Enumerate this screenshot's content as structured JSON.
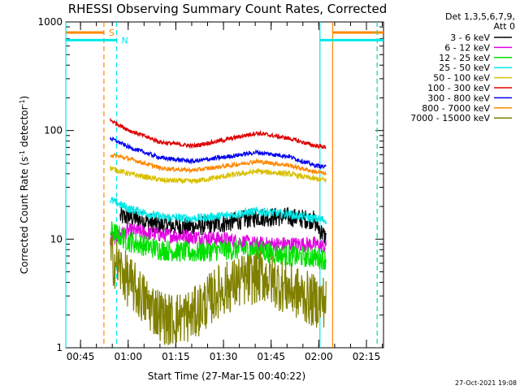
{
  "chart_data": {
    "type": "line",
    "title": "RHESSI Observing Summary Count Rates, Corrected",
    "ylabel_main": "Corrected Count Rate (s",
    "ylabel_sup1": "-1",
    "ylabel_mid": " detector",
    "ylabel_sup2": "-1",
    "ylabel_end": ")",
    "xlabel": "Start Time (27-Mar-15 00:40:22)",
    "yscale": "log",
    "ylim": [
      1,
      1000
    ],
    "xlim_minutes": [
      0,
      100
    ],
    "x_tick_labels": [
      "00:45",
      "01:00",
      "01:15",
      "01:30",
      "01:45",
      "02:00",
      "02:15"
    ],
    "x_tick_minutes": [
      4.63,
      19.63,
      34.63,
      49.63,
      64.63,
      79.63,
      94.63
    ],
    "y_tick_labels": [
      "1",
      "10",
      "100",
      "1000"
    ],
    "y_tick_values": [
      1,
      10,
      100,
      1000
    ],
    "legend_header": [
      "Det 1,3,5,6,7,9,",
      "Att 0"
    ],
    "legend_placement": "right",
    "series": [
      {
        "name": "3 - 6 keV",
        "color": "#000000",
        "noise": 0.09,
        "x": [
          14,
          20,
          30,
          40,
          50,
          60,
          70,
          78,
          82
        ],
        "y": [
          null,
          16,
          13.5,
          13,
          14,
          16,
          16,
          15,
          10
        ]
      },
      {
        "name": "6 - 12 keV",
        "color": "#e000e0",
        "noise": 0.07,
        "x": [
          14,
          20,
          30,
          40,
          50,
          60,
          70,
          78,
          82
        ],
        "y": [
          10,
          12,
          11,
          10.5,
          10,
          9,
          9,
          9,
          8.5
        ]
      },
      {
        "name": "12 - 25 keV",
        "color": "#00e000",
        "noise": 0.1,
        "x": [
          14,
          20,
          30,
          40,
          50,
          60,
          70,
          78,
          82
        ],
        "y": [
          12,
          9.5,
          8,
          7.5,
          8,
          8,
          7,
          6.8,
          6.5
        ]
      },
      {
        "name": "25 - 50 keV",
        "color": "#00e8e8",
        "noise": 0.04,
        "x": [
          14,
          20,
          30,
          40,
          50,
          60,
          70,
          78,
          82
        ],
        "y": [
          23,
          19,
          16,
          15.5,
          16.5,
          18,
          17,
          15.5,
          15
        ]
      },
      {
        "name": "50 - 100 keV",
        "color": "#d8c000",
        "noise": 0.025,
        "x": [
          14,
          20,
          30,
          40,
          50,
          60,
          70,
          78,
          82
        ],
        "y": [
          45,
          40,
          35,
          34,
          38,
          42,
          40,
          36,
          35
        ]
      },
      {
        "name": "100 - 300 keV",
        "color": "#dd0000",
        "noise": 0.02,
        "x": [
          14,
          20,
          30,
          40,
          50,
          60,
          70,
          78,
          82
        ],
        "y": [
          125,
          100,
          78,
          72,
          82,
          95,
          85,
          73,
          70
        ]
      },
      {
        "name": "300 - 800 keV",
        "color": "#0000ee",
        "noise": 0.02,
        "x": [
          14,
          20,
          30,
          40,
          50,
          60,
          70,
          78,
          82
        ],
        "y": [
          85,
          70,
          56,
          52,
          57,
          63,
          58,
          48,
          46
        ]
      },
      {
        "name": "800 - 7000 keV",
        "color": "#ff8800",
        "noise": 0.02,
        "x": [
          14,
          20,
          30,
          40,
          50,
          60,
          70,
          78,
          82
        ],
        "y": [
          60,
          55,
          45,
          43,
          47,
          52,
          48,
          42,
          40
        ]
      },
      {
        "name": "7000 - 15000 keV",
        "color": "#808000",
        "noise": 0.25,
        "x": [
          14,
          20,
          26,
          32,
          40,
          48,
          56,
          62,
          70,
          78,
          82
        ],
        "y": [
          7,
          4,
          2.5,
          1.8,
          2,
          3.3,
          4.2,
          4.6,
          3.5,
          2.7,
          2.7
        ]
      }
    ],
    "segments": [
      {
        "label": "S",
        "color": "#ff8800",
        "y": 800,
        "x_ranges": [
          [
            0,
            12
          ],
          [
            84,
            100
          ]
        ],
        "label_x": 13,
        "vlines": [
          12,
          84,
          98
        ],
        "dashed": [
          12,
          98
        ]
      },
      {
        "label": "N",
        "color": "#00e8e8",
        "y": 680,
        "x_ranges": [
          [
            0,
            16
          ],
          [
            80,
            100
          ]
        ],
        "label_x": 17,
        "vlines": [
          0,
          80,
          16,
          98
        ],
        "dashed": [
          16,
          98
        ]
      }
    ]
  },
  "footer_timestamp": "27-Oct-2021 19:08"
}
